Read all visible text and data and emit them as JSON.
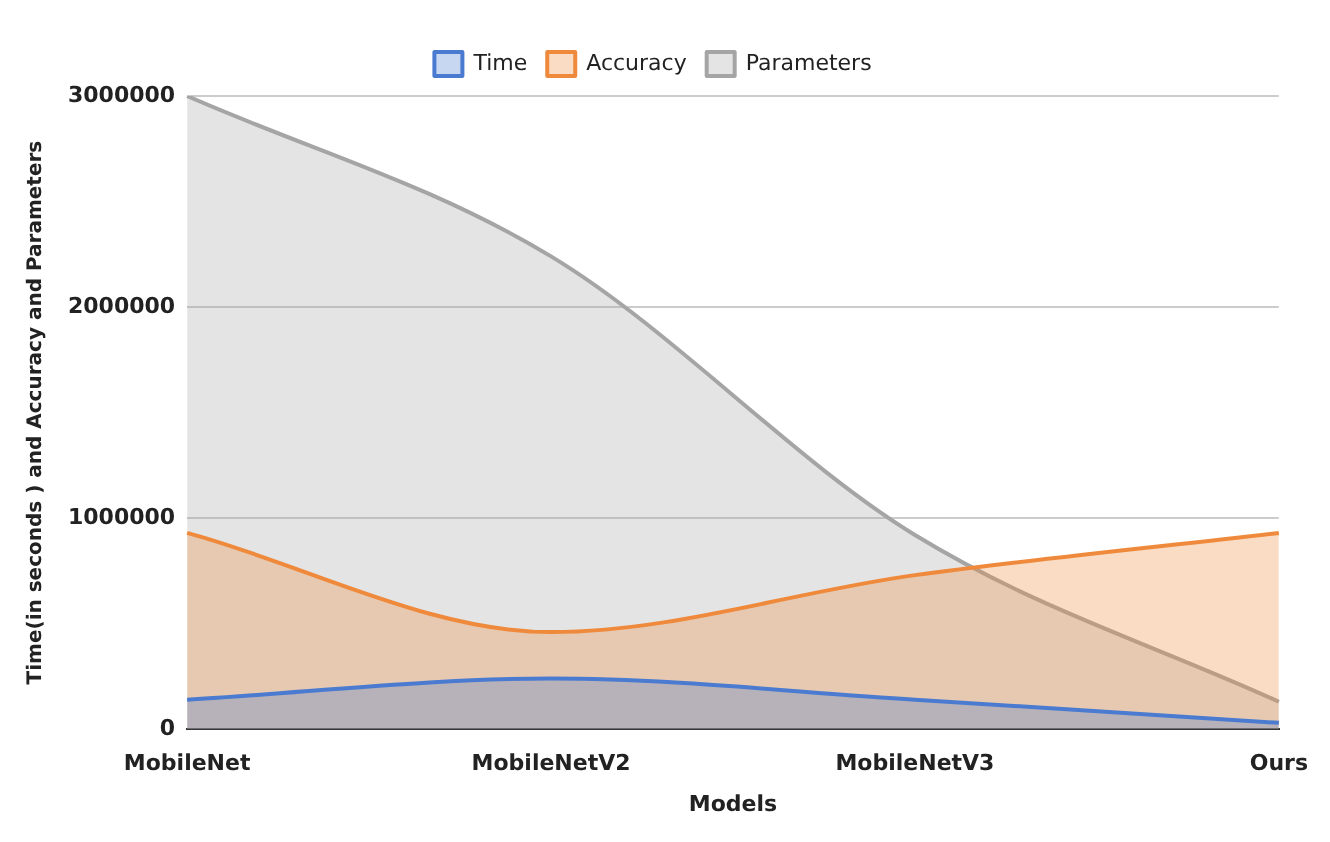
{
  "chart_data": {
    "type": "area",
    "xlabel": "Models",
    "ylabel": "Time(in seconds ) and Accuracy and Parameters",
    "categories": [
      "MobileNet",
      "MobileNetV2",
      "MobileNetV3",
      "Ours"
    ],
    "series": [
      {
        "name": "Time",
        "color": "#4a7bd0",
        "values": [
          140000,
          240000,
          140000,
          30000
        ]
      },
      {
        "name": "Accuracy",
        "color": "#ef8a3c",
        "values": [
          930000,
          460000,
          730000,
          930000
        ]
      },
      {
        "name": "Parameters",
        "color": "#a5a5a5",
        "values": [
          3000000,
          2240000,
          920000,
          130000
        ]
      }
    ],
    "ylim": [
      0,
      3000000
    ],
    "yticks": [
      0,
      1000000,
      2000000,
      3000000
    ],
    "grid": "y",
    "legend": "top"
  }
}
